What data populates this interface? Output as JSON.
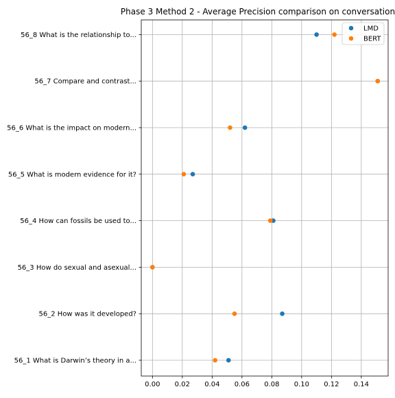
{
  "chart_data": {
    "type": "scatter",
    "title": "Phase 3 Method 2 - Average Precision comparison on conversation",
    "xlabel": "",
    "ylabel": "",
    "xlim": [
      -0.0075,
      0.158
    ],
    "xticks": [
      0.0,
      0.02,
      0.04,
      0.06,
      0.08,
      0.1,
      0.12,
      0.14
    ],
    "xtick_labels": [
      "0.00",
      "0.02",
      "0.04",
      "0.06",
      "0.08",
      "0.10",
      "0.12",
      "0.14"
    ],
    "grid": true,
    "legend_position": "top-right",
    "categories": [
      "56_1 What is Darwin’s theory in a...",
      "56_2 How was it developed?",
      "56_3 How do sexual and asexual...",
      "56_4 How can fossils be used to...",
      "56_5 What is modern evidence for it?",
      "56_6 What is the impact on modern...",
      "56_7 Compare and contrast...",
      "56_8 What is the relationship to..."
    ],
    "series": [
      {
        "name": "LMD",
        "color": "#1f77b4",
        "values": [
          0.051,
          0.087,
          0.0,
          0.081,
          0.027,
          0.062,
          0.151,
          0.11
        ]
      },
      {
        "name": "BERT",
        "color": "#ff7f0e",
        "values": [
          0.042,
          0.055,
          0.0,
          0.079,
          0.021,
          0.052,
          0.151,
          0.122
        ]
      }
    ]
  }
}
